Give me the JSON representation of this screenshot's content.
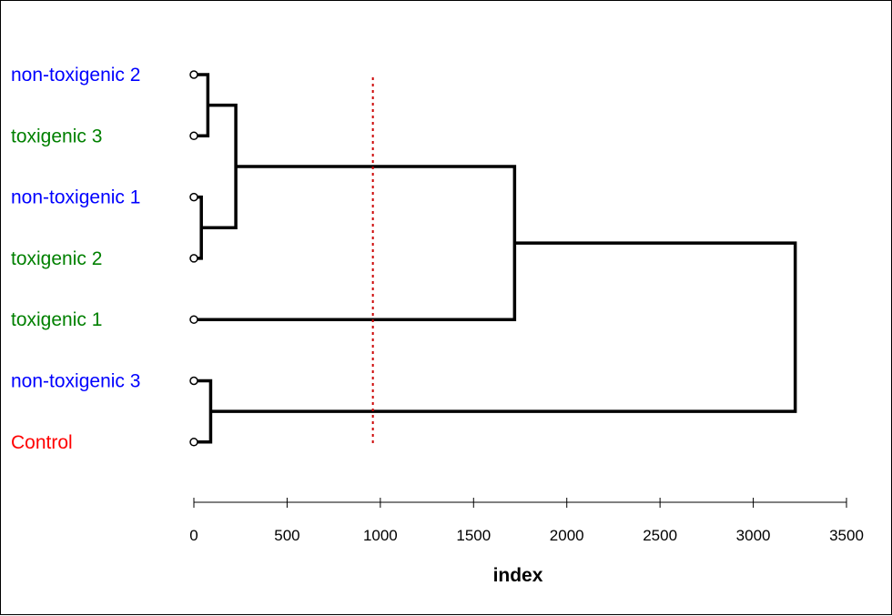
{
  "chart_data": {
    "type": "dendrogram",
    "orientation": "horizontal",
    "xlabel": "index",
    "xlim": [
      0,
      3500
    ],
    "x_ticks": [
      0,
      500,
      1000,
      1500,
      2000,
      2500,
      3000,
      3500
    ],
    "x_tick_labels": [
      "0",
      "500",
      "1000",
      "1500",
      "2000",
      "2500",
      "3000",
      "3500"
    ],
    "leaves": [
      {
        "label": "non-toxigenic 2",
        "color": "#0000ff"
      },
      {
        "label": "toxigenic 3",
        "color": "#008000"
      },
      {
        "label": "non-toxigenic 1",
        "color": "#0000ff"
      },
      {
        "label": "toxigenic 2",
        "color": "#008000"
      },
      {
        "label": "toxigenic 1",
        "color": "#008000"
      },
      {
        "label": "non-toxigenic 3",
        "color": "#0000ff"
      },
      {
        "label": "Control",
        "color": "#ff0000"
      }
    ],
    "merges": [
      {
        "id": "m1",
        "left": "non-toxigenic 2",
        "right": "toxigenic 3",
        "height": 75
      },
      {
        "id": "m2",
        "left": "non-toxigenic 1",
        "right": "toxigenic 2",
        "height": 40
      },
      {
        "id": "m3",
        "left": "m1",
        "right": "m2",
        "height": 225
      },
      {
        "id": "m4",
        "left": "non-toxigenic 3",
        "right": "Control",
        "height": 90
      },
      {
        "id": "m5",
        "left": "m3",
        "right": "toxigenic 1",
        "height": 1720
      },
      {
        "id": "m6",
        "left": "m5",
        "right": "m4",
        "height": 3225
      }
    ],
    "cut_line": {
      "value": 960,
      "color": "#cc0000",
      "style": "dotted"
    },
    "grid": false,
    "legend": "none"
  }
}
